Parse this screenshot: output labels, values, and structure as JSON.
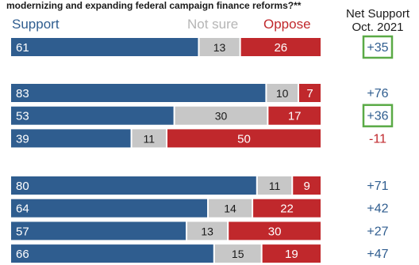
{
  "question_text": "modernizing and expanding federal campaign finance reforms?**",
  "colors": {
    "support": "#2f5d8f",
    "not_sure": "#c7c7c7",
    "oppose": "#c0282c",
    "net_positive": "#2f5d8f",
    "net_negative": "#c0282c",
    "highlight_box": "#5aaa46"
  },
  "chart_data": {
    "type": "bar",
    "orientation": "horizontal",
    "stacked": true,
    "legend": {
      "support": "Support",
      "not_sure": "Not sure",
      "oppose": "Oppose"
    },
    "net_header": [
      "Net Support",
      "Oct. 2021"
    ],
    "groups": [
      {
        "rows": [
          {
            "support": 61,
            "not_sure": 13,
            "oppose": 26,
            "net": "+35",
            "highlighted": true
          }
        ]
      },
      {
        "rows": [
          {
            "support": 83,
            "not_sure": 10,
            "oppose": 7,
            "net": "+76",
            "highlighted": false
          },
          {
            "support": 53,
            "not_sure": 30,
            "oppose": 17,
            "net": "+36",
            "highlighted": true
          },
          {
            "support": 39,
            "not_sure": 11,
            "oppose": 50,
            "net": "-11",
            "highlighted": false
          }
        ]
      },
      {
        "rows": [
          {
            "support": 80,
            "not_sure": 11,
            "oppose": 9,
            "net": "+71",
            "highlighted": false
          },
          {
            "support": 64,
            "not_sure": 14,
            "oppose": 22,
            "net": "+42",
            "highlighted": false
          },
          {
            "support": 57,
            "not_sure": 13,
            "oppose": 30,
            "net": "+27",
            "highlighted": false
          },
          {
            "support": 66,
            "not_sure": 15,
            "oppose": 19,
            "net": "+47",
            "highlighted": false
          }
        ]
      }
    ]
  }
}
